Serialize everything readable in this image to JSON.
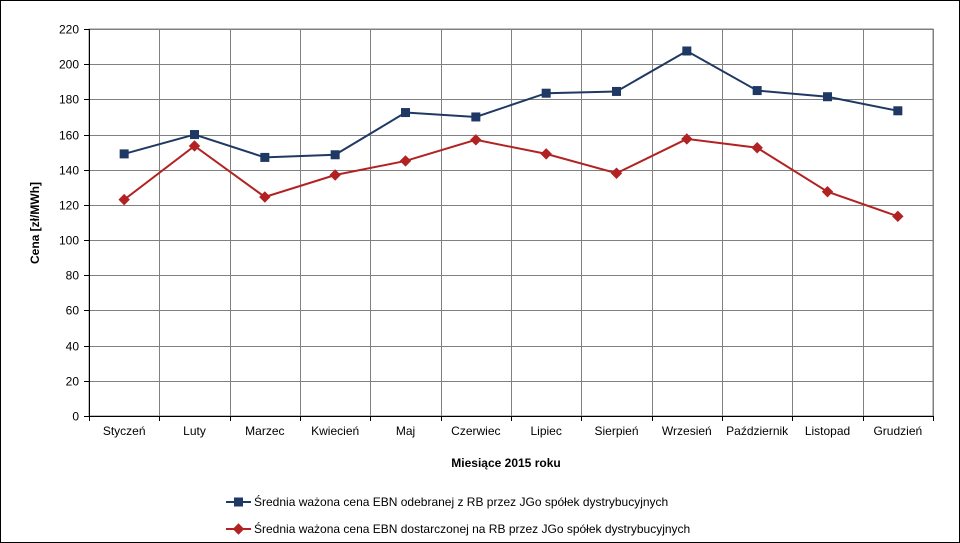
{
  "chart_data": {
    "type": "line",
    "xlabel": "Miesiące 2015  roku",
    "ylabel": "Cena [zł/MWh]",
    "ylim": [
      0,
      220
    ],
    "y_ticks": [
      0,
      20,
      40,
      60,
      80,
      100,
      120,
      140,
      160,
      180,
      200,
      220
    ],
    "categories": [
      "Styczeń",
      "Luty",
      "Marzec",
      "Kwiecień",
      "Maj",
      "Czerwiec",
      "Lipiec",
      "Sierpień",
      "Wrzesień",
      "Październik",
      "Listopad",
      "Grudzień"
    ],
    "grid": true,
    "legend_position": "bottom",
    "series": [
      {
        "name": "Średnia ważona cena EBN odebranej z RB przez JGo spółek dystrybucyjnych",
        "color": "#1f3864",
        "marker": "square",
        "values": [
          149,
          160,
          147,
          148.5,
          172.5,
          170,
          183.5,
          184.5,
          207.5,
          185,
          181.5,
          173.5
        ]
      },
      {
        "name": "Średnia ważona cena EBN dostarczonej na RB przez JGo spółek dystrybucyjnych",
        "color": "#b22222",
        "marker": "diamond",
        "values": [
          123,
          153.5,
          124.5,
          137,
          145,
          157,
          149,
          138,
          157.5,
          152.5,
          127.5,
          113.5
        ]
      }
    ]
  }
}
